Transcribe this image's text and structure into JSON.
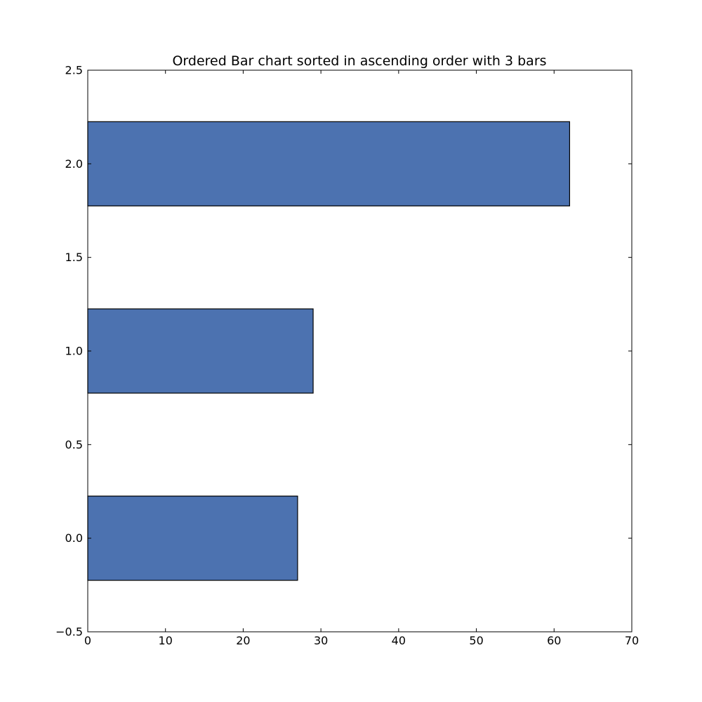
{
  "chart_data": {
    "type": "bar",
    "orientation": "horizontal",
    "title": "Ordered Bar chart sorted in ascending order with 3 bars",
    "xlabel": "",
    "ylabel": "",
    "xlim": [
      0,
      70
    ],
    "ylim": [
      -0.5,
      2.5
    ],
    "bar_height": 0.45,
    "bar_color": "#4c72b0",
    "edge_color": "#000000",
    "grid": false,
    "bars": [
      {
        "y": 0,
        "value": 27
      },
      {
        "y": 1,
        "value": 29
      },
      {
        "y": 2,
        "value": 62
      }
    ],
    "x_ticks": [
      {
        "value": 0,
        "label": "0"
      },
      {
        "value": 10,
        "label": "10"
      },
      {
        "value": 20,
        "label": "20"
      },
      {
        "value": 30,
        "label": "30"
      },
      {
        "value": 40,
        "label": "40"
      },
      {
        "value": 50,
        "label": "50"
      },
      {
        "value": 60,
        "label": "60"
      },
      {
        "value": 70,
        "label": "70"
      }
    ],
    "y_ticks": [
      {
        "value": -0.5,
        "label": "−0.5"
      },
      {
        "value": 0.0,
        "label": "0.0"
      },
      {
        "value": 0.5,
        "label": "0.5"
      },
      {
        "value": 1.0,
        "label": "1.0"
      },
      {
        "value": 1.5,
        "label": "1.5"
      },
      {
        "value": 2.0,
        "label": "2.0"
      },
      {
        "value": 2.5,
        "label": "2.5"
      }
    ]
  }
}
